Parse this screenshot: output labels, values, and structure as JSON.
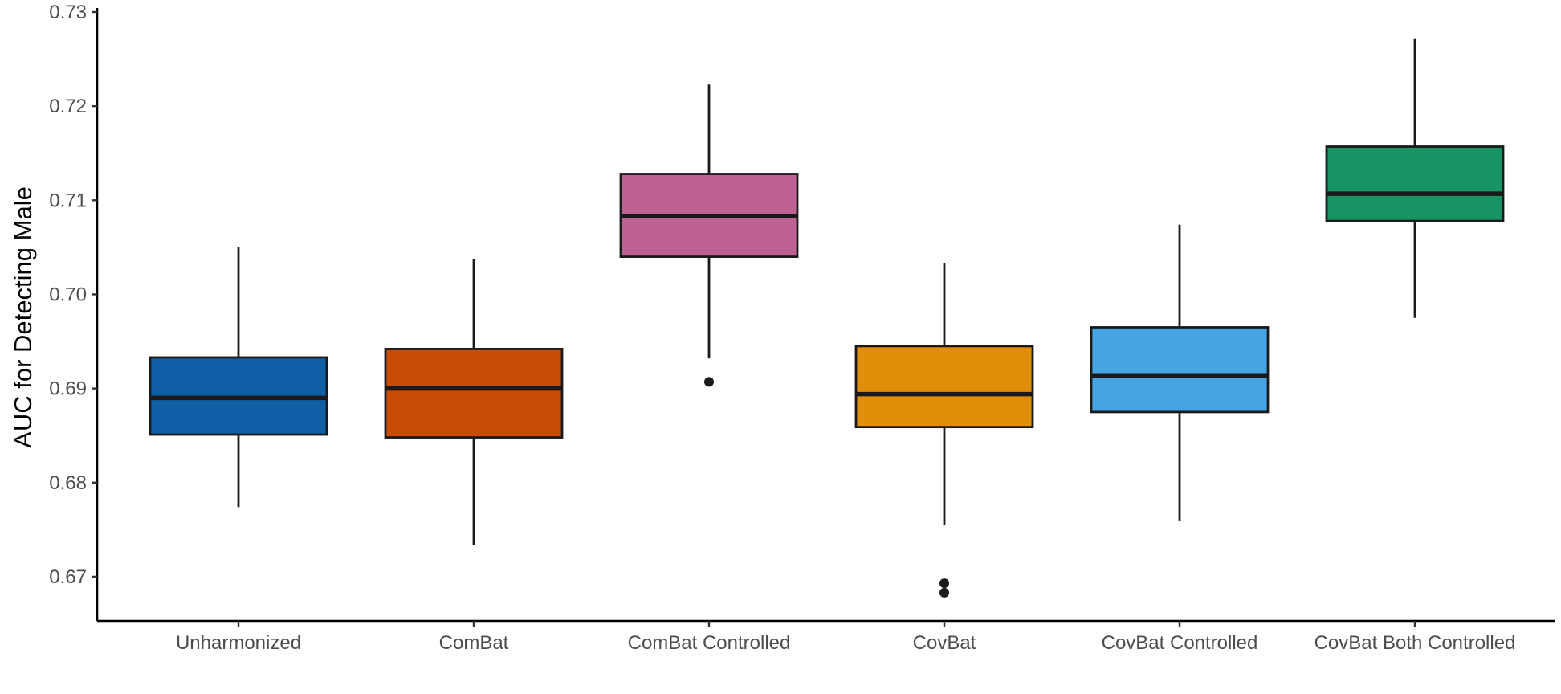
{
  "chart_data": {
    "type": "boxplot",
    "title": "",
    "xlabel": "",
    "ylabel": "AUC for Detecting Male",
    "ylim": [
      0.6653,
      0.73
    ],
    "yticks": [
      0.67,
      0.68,
      0.69,
      0.7,
      0.71,
      0.72,
      0.73
    ],
    "ytick_labels": [
      "0.67",
      "0.68",
      "0.69",
      "0.70",
      "0.71",
      "0.72",
      "0.73"
    ],
    "grid": false,
    "legend": "none",
    "categories": [
      "Unharmonized",
      "ComBat",
      "ComBat Controlled",
      "CovBat",
      "CovBat Controlled",
      "CovBat Both Controlled"
    ],
    "boxes": [
      {
        "name": "Unharmonized",
        "color": "#0F5FA6",
        "whisker_low": 0.6774,
        "q1": 0.6851,
        "median": 0.689,
        "q3": 0.6933,
        "whisker_high": 0.705,
        "outliers": []
      },
      {
        "name": "ComBat",
        "color": "#C84B06",
        "whisker_low": 0.6734,
        "q1": 0.6848,
        "median": 0.69,
        "q3": 0.6942,
        "whisker_high": 0.7038,
        "outliers": []
      },
      {
        "name": "ComBat Controlled",
        "color": "#C06193",
        "whisker_low": 0.6932,
        "q1": 0.704,
        "median": 0.7083,
        "q3": 0.7128,
        "whisker_high": 0.7223,
        "outliers": [
          0.6907
        ]
      },
      {
        "name": "CovBat",
        "color": "#E18E0A",
        "whisker_low": 0.6755,
        "q1": 0.6859,
        "median": 0.6894,
        "q3": 0.6945,
        "whisker_high": 0.7033,
        "outliers": [
          0.6693,
          0.6683
        ]
      },
      {
        "name": "CovBat Controlled",
        "color": "#47A4E2",
        "whisker_low": 0.6759,
        "q1": 0.6875,
        "median": 0.6914,
        "q3": 0.6965,
        "whisker_high": 0.7074,
        "outliers": []
      },
      {
        "name": "CovBat Both Controlled",
        "color": "#179364",
        "whisker_low": 0.6975,
        "q1": 0.7078,
        "median": 0.7107,
        "q3": 0.7157,
        "whisker_high": 0.7272,
        "outliers": []
      }
    ]
  }
}
